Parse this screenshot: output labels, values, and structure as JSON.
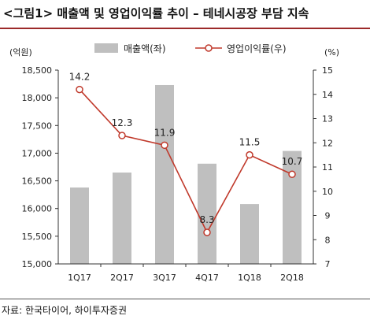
{
  "title": "<그림1> 매출액 및 영업이익률 추이 – 테네시공장 부담 지속",
  "source": "자료: 한국타이어, 하이투자증권",
  "chart_data": {
    "type": "bar+line",
    "categories": [
      "1Q17",
      "2Q17",
      "3Q17",
      "4Q17",
      "1Q18",
      "2Q18"
    ],
    "series": [
      {
        "name": "매출액(좌)",
        "type": "bar",
        "axis": "left",
        "color": "#bfbfbf",
        "values": [
          16380,
          16650,
          18230,
          16810,
          16080,
          17040
        ]
      },
      {
        "name": "영업이익률(우)",
        "type": "line",
        "axis": "right",
        "color": "#c0392b",
        "values": [
          14.2,
          12.3,
          11.9,
          8.3,
          11.5,
          10.7
        ]
      }
    ],
    "left_axis": {
      "unit_label": "(억원)",
      "min": 15000,
      "max": 18500,
      "step": 500,
      "tick_labels": [
        "15,000",
        "15,500",
        "16,000",
        "16,500",
        "17,000",
        "17,500",
        "18,000",
        "18,500"
      ]
    },
    "right_axis": {
      "unit_label": "(%)",
      "min": 7,
      "max": 15,
      "step": 1,
      "tick_labels": [
        "7",
        "8",
        "9",
        "10",
        "11",
        "12",
        "13",
        "14",
        "15"
      ]
    },
    "data_labels": [
      "14.2",
      "12.3",
      "11.9",
      "8.3",
      "11.5",
      "10.7"
    ],
    "legend_position": "top",
    "grid": false
  }
}
